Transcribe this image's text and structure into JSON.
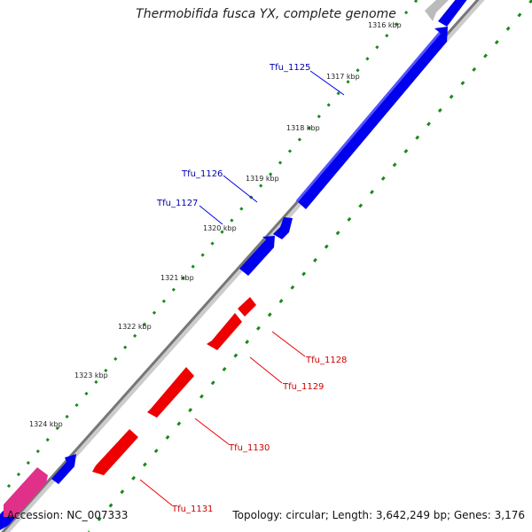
{
  "title": "Thermobifida fusca YX, complete genome",
  "accession": "Accession: NC_007333",
  "summary": "Topology: circular; Length: 3,642,249 bp; Genes: 3,176",
  "colors": {
    "forward_strand": "#0000ee",
    "reverse_strand": "#ee0000",
    "backbone": "#888888",
    "tick": "#1a8a1a",
    "rna": "#e0308a"
  },
  "ruler": [
    {
      "label": "1316 kbp"
    },
    {
      "label": "1317 kbp"
    },
    {
      "label": "1318 kbp"
    },
    {
      "label": "1319 kbp"
    },
    {
      "label": "1320 kbp"
    },
    {
      "label": "1321 kbp"
    },
    {
      "label": "1322 kbp"
    },
    {
      "label": "1323 kbp"
    },
    {
      "label": "1324 kbp"
    }
  ],
  "genes": [
    {
      "name": "Tfu_1125",
      "strand": "forward"
    },
    {
      "name": "Tfu_1126",
      "strand": "forward"
    },
    {
      "name": "Tfu_1127",
      "strand": "forward"
    },
    {
      "name": "Tfu_1128",
      "strand": "reverse"
    },
    {
      "name": "Tfu_1129",
      "strand": "reverse"
    },
    {
      "name": "Tfu_1130",
      "strand": "reverse"
    },
    {
      "name": "Tfu_1131",
      "strand": "reverse"
    }
  ]
}
